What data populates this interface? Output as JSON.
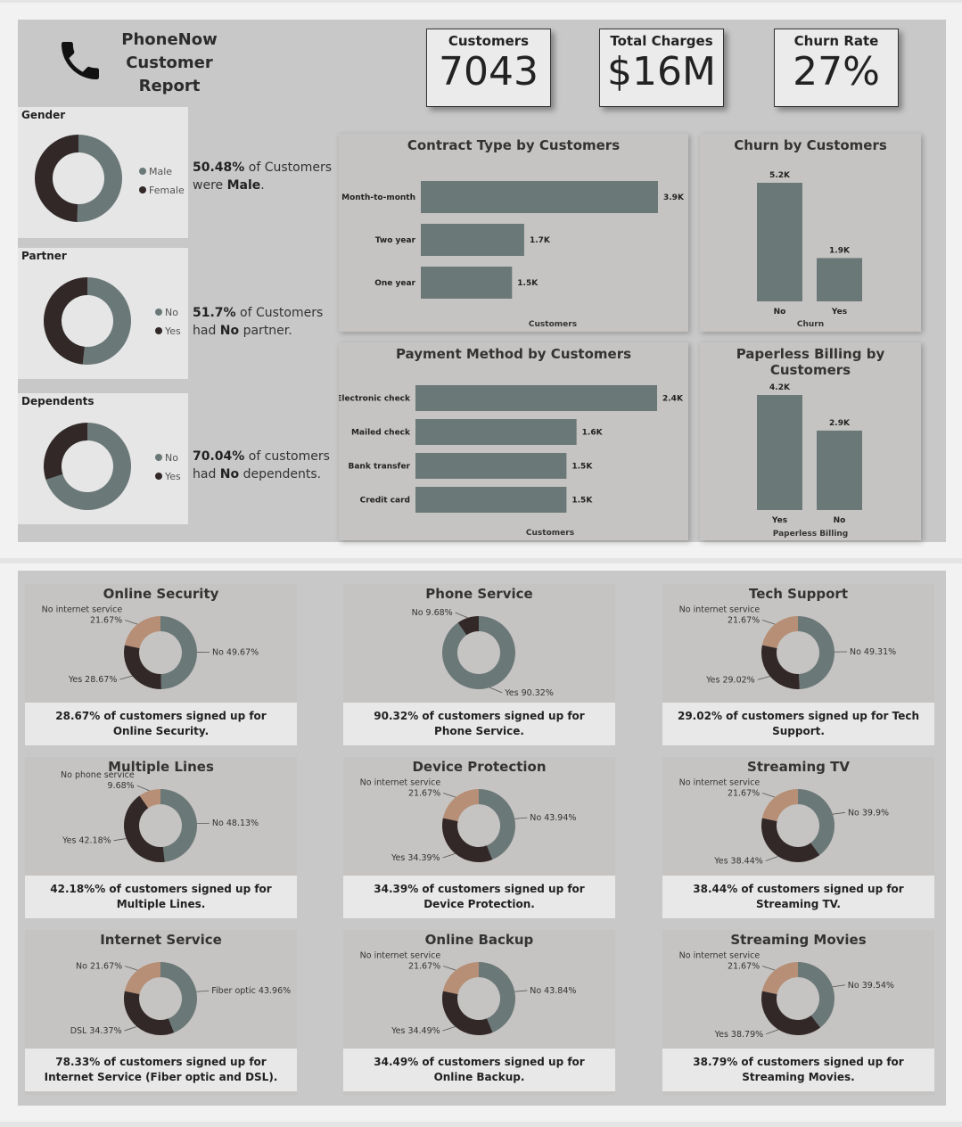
{
  "header": {
    "title_line1": "PhoneNow",
    "title_line2": "Customer",
    "title_line3": "Report",
    "icon": "phone-icon"
  },
  "kpis": [
    {
      "label": "Customers",
      "value": "7043"
    },
    {
      "label": "Total Charges",
      "value": "$16M"
    },
    {
      "label": "Churn Rate",
      "value": "27%"
    }
  ],
  "colors": {
    "slate": "#6b7878",
    "dark": "#322828",
    "tan": "#b68f76",
    "panel": "#c8c8c8"
  },
  "demographics": {
    "gender": {
      "heading": "Gender",
      "legend": [
        "Male",
        "Female"
      ],
      "stat_pct": "50.48%",
      "stat_pre": " of Customers were ",
      "stat_bold": "Male",
      "stat_post": ".",
      "male_share": 50.48
    },
    "partner": {
      "heading": "Partner",
      "legend": [
        "No",
        "Yes"
      ],
      "stat_pct": "51.7%",
      "stat_pre": " of Customers had ",
      "stat_bold": "No",
      "stat_post": " partner.",
      "no_share": 51.7
    },
    "dependents": {
      "heading": "Dependents",
      "legend": [
        "No",
        "Yes"
      ],
      "stat_pct": "70.04%",
      "stat_pre": " of customers had ",
      "stat_bold": "No",
      "stat_post": " dependents.",
      "no_share": 70.04
    }
  },
  "chart_data": [
    {
      "type": "bar",
      "orientation": "horizontal",
      "title": "Contract Type by Customers",
      "xlabel": "Customers",
      "categories": [
        "Month-to-month",
        "Two year",
        "One year"
      ],
      "values": [
        3900,
        1700,
        1500
      ],
      "labels": [
        "3.9K",
        "1.7K",
        "1.5K"
      ]
    },
    {
      "type": "bar",
      "title": "Churn by Customers",
      "xlabel": "Churn",
      "categories": [
        "No",
        "Yes"
      ],
      "values": [
        5200,
        1900
      ],
      "labels": [
        "5.2K",
        "1.9K"
      ]
    },
    {
      "type": "bar",
      "orientation": "horizontal",
      "title": "Payment Method by Customers",
      "xlabel": "Customers",
      "categories": [
        "Electronic check",
        "Mailed check",
        "Bank transfer",
        "Credit card"
      ],
      "values": [
        2400,
        1600,
        1500,
        1500
      ],
      "labels": [
        "2.4K",
        "1.6K",
        "1.5K",
        "1.5K"
      ]
    },
    {
      "type": "bar",
      "title": "Paperless Billing by Customers",
      "xlabel": "Paperless Billing",
      "categories": [
        "Yes",
        "No"
      ],
      "values": [
        4200,
        2900
      ],
      "labels": [
        "4.2K",
        "2.9K"
      ]
    }
  ],
  "services": [
    {
      "title": "Online Security",
      "caption": "28.67% of customers signed up for Online Security.",
      "slices": [
        {
          "label": "No 49.67%",
          "value": 49.67,
          "color": "slate"
        },
        {
          "label": "Yes 28.67%",
          "value": 28.67,
          "color": "dark"
        },
        {
          "label": "No internet service 21.67%",
          "value": 21.67,
          "color": "tan"
        }
      ]
    },
    {
      "title": "Phone Service",
      "caption": "90.32% of customers signed up for Phone Service.",
      "slices": [
        {
          "label": "Yes 90.32%",
          "value": 90.32,
          "color": "slate"
        },
        {
          "label": "No 9.68%",
          "value": 9.68,
          "color": "dark"
        }
      ]
    },
    {
      "title": "Tech Support",
      "caption": "29.02% of customers signed up for Tech Support.",
      "slices": [
        {
          "label": "No 49.31%",
          "value": 49.31,
          "color": "slate"
        },
        {
          "label": "Yes 29.02%",
          "value": 29.02,
          "color": "dark"
        },
        {
          "label": "No internet service 21.67%",
          "value": 21.67,
          "color": "tan"
        }
      ]
    },
    {
      "title": "Multiple Lines",
      "caption": "42.18%% of customers signed up for Multiple Lines.",
      "slices": [
        {
          "label": "No 48.13%",
          "value": 48.13,
          "color": "slate"
        },
        {
          "label": "Yes 42.18%",
          "value": 42.18,
          "color": "dark"
        },
        {
          "label": "No phone service 9.68%",
          "value": 9.68,
          "color": "tan"
        }
      ]
    },
    {
      "title": "Device Protection",
      "caption": "34.39% of customers signed up for Device Protection.",
      "slices": [
        {
          "label": "No 43.94%",
          "value": 43.94,
          "color": "slate"
        },
        {
          "label": "Yes 34.39%",
          "value": 34.39,
          "color": "dark"
        },
        {
          "label": "No internet service 21.67%",
          "value": 21.67,
          "color": "tan"
        }
      ]
    },
    {
      "title": "Streaming TV",
      "caption": "38.44% of customers signed up for Streaming TV.",
      "slices": [
        {
          "label": "No 39.9%",
          "value": 39.9,
          "color": "slate"
        },
        {
          "label": "Yes 38.44%",
          "value": 38.44,
          "color": "dark"
        },
        {
          "label": "No internet service 21.67%",
          "value": 21.67,
          "color": "tan"
        }
      ]
    },
    {
      "title": "Internet Service",
      "caption": "78.33% of customers signed up for Internet Service (Fiber optic and DSL).",
      "slices": [
        {
          "label": "Fiber optic 43.96%",
          "value": 43.96,
          "color": "slate"
        },
        {
          "label": "DSL 34.37%",
          "value": 34.37,
          "color": "dark"
        },
        {
          "label": "No 21.67%",
          "value": 21.67,
          "color": "tan"
        }
      ]
    },
    {
      "title": "Online Backup",
      "caption": "34.49% of customers signed up for Online Backup.",
      "slices": [
        {
          "label": "No 43.84%",
          "value": 43.84,
          "color": "slate"
        },
        {
          "label": "Yes 34.49%",
          "value": 34.49,
          "color": "dark"
        },
        {
          "label": "No internet service 21.67%",
          "value": 21.67,
          "color": "tan"
        }
      ]
    },
    {
      "title": "Streaming Movies",
      "caption": "38.79% of customers signed up for Streaming Movies.",
      "slices": [
        {
          "label": "No 39.54%",
          "value": 39.54,
          "color": "slate"
        },
        {
          "label": "Yes 38.79%",
          "value": 38.79,
          "color": "dark"
        },
        {
          "label": "No internet service 21.67%",
          "value": 21.67,
          "color": "tan"
        }
      ]
    }
  ]
}
